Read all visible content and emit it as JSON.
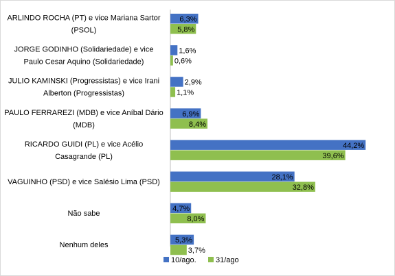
{
  "chart_data": {
    "type": "bar",
    "orientation": "horizontal",
    "categories": [
      [
        "ARLINDO ROCHA (PT) e vice Mariana Sartor",
        "(PSOL)"
      ],
      [
        "JORGE GODINHO (Solidariedade) e vice",
        "Paulo Cesar Aquino (Solidariedade)"
      ],
      [
        "JULIO KAMINSKI (Progressistas) e vice Irani",
        "Alberton (Progressistas)"
      ],
      [
        "PAULO FERRAREZI (MDB) e vice Aníbal Dário",
        "(MDB)"
      ],
      [
        "RICARDO GUIDI (PL) e vice Acélio",
        "Casagrande (PL)"
      ],
      [
        "VAGUINHO (PSD) e vice Salésio Lima (PSD)"
      ],
      [
        "Não sabe"
      ],
      [
        "Nenhum deles"
      ]
    ],
    "series": [
      {
        "name": "10/ago.",
        "color": "#4472c4",
        "values": [
          6.3,
          1.6,
          2.9,
          6.9,
          44.2,
          28.1,
          4.7,
          5.3
        ],
        "labels": [
          "6,3%",
          "1,6%",
          "2,9%",
          "6,9%",
          "44,2%",
          "28,1%",
          "4,7%",
          "5,3%"
        ]
      },
      {
        "name": "31/ago",
        "color": "#8fbf4f",
        "values": [
          5.8,
          0.6,
          1.1,
          8.4,
          39.6,
          32.8,
          8.0,
          3.7
        ],
        "labels": [
          "5,8%",
          "0,6%",
          "1,1%",
          "8,4%",
          "39,6%",
          "32,8%",
          "8,0%",
          "3,7%"
        ]
      }
    ],
    "xlim": [
      0,
      50
    ],
    "grid": false,
    "legend_position": "bottom"
  }
}
